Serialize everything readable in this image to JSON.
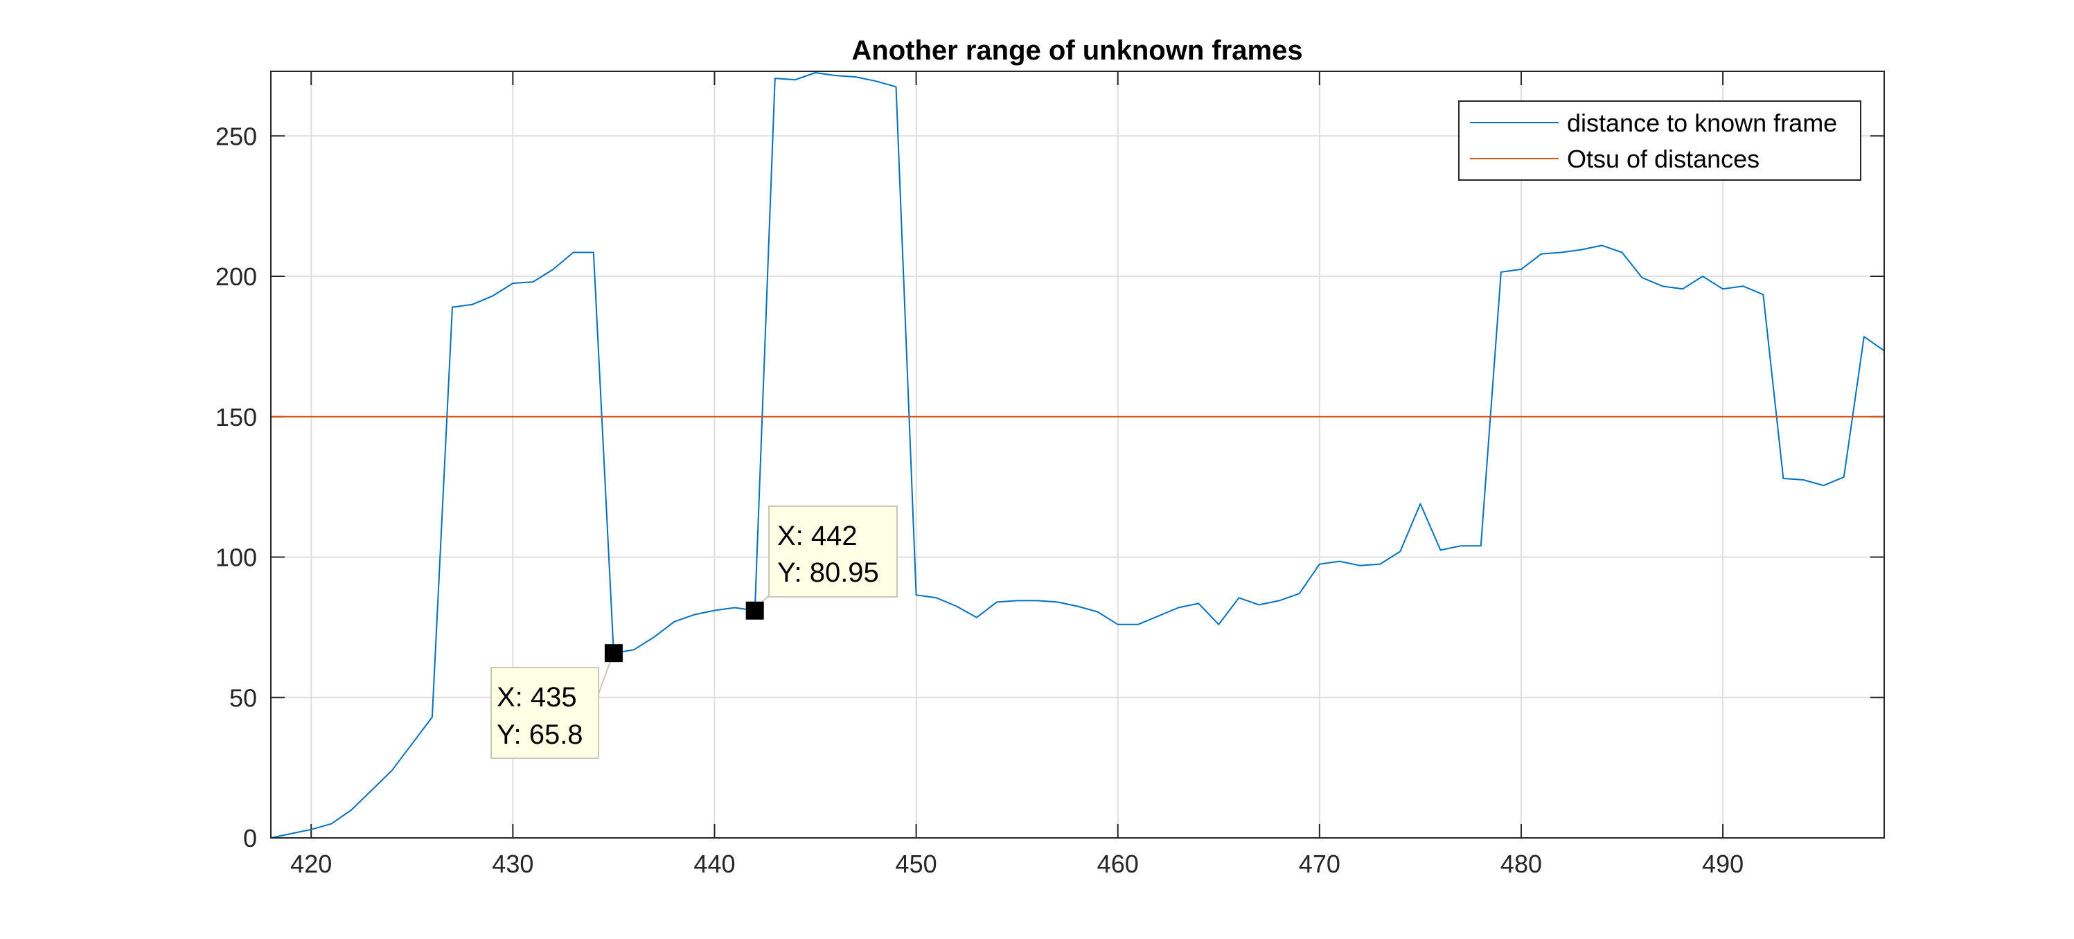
{
  "chart_data": {
    "type": "line",
    "title": "Another range of unknown frames",
    "xlabel": "",
    "ylabel": "",
    "xlim": [
      418,
      498
    ],
    "ylim": [
      0,
      273
    ],
    "x_ticks": [
      420,
      430,
      440,
      450,
      460,
      470,
      480,
      490
    ],
    "y_ticks": [
      0,
      50,
      100,
      150,
      200,
      250
    ],
    "grid": true,
    "legend_position": "top-right",
    "series": [
      {
        "name": "distance to known frame",
        "color": "#0072BD",
        "x": [
          418,
          419,
          420,
          421,
          422,
          423,
          424,
          425,
          426,
          427,
          428,
          429,
          430,
          431,
          432,
          433,
          434,
          435,
          436,
          437,
          438,
          439,
          440,
          441,
          442,
          443,
          444,
          445,
          446,
          447,
          448,
          449,
          450,
          451,
          452,
          453,
          454,
          455,
          456,
          457,
          458,
          459,
          460,
          461,
          462,
          463,
          464,
          465,
          466,
          467,
          468,
          469,
          470,
          471,
          472,
          473,
          474,
          475,
          476,
          477,
          478,
          479,
          480,
          481,
          482,
          483,
          484,
          485,
          486,
          487,
          488,
          489,
          490,
          491,
          492,
          493,
          494,
          495,
          496,
          497,
          498
        ],
        "y": [
          0,
          1.5,
          3,
          5,
          10,
          17,
          24,
          33.5,
          43,
          189,
          190,
          193,
          197.5,
          198,
          202.5,
          208.5,
          208.5,
          65.8,
          67,
          71.5,
          77,
          79.5,
          81,
          82,
          80.95,
          270.5,
          270,
          272.5,
          271.5,
          271,
          269.5,
          267.5,
          86.5,
          85.5,
          82.5,
          78.5,
          84,
          84.5,
          84.5,
          84,
          82.5,
          80.5,
          76,
          76,
          79,
          82,
          83.5,
          76,
          85.5,
          83,
          84.5,
          87,
          97.5,
          98.5,
          97,
          97.5,
          102,
          119,
          102.5,
          104,
          104,
          201.5,
          202.5,
          208,
          208.5,
          209.5,
          211,
          208.5,
          199.5,
          196.5,
          195.5,
          200,
          195.5,
          196.5,
          193.5,
          128,
          127.5,
          125.5,
          128.5,
          178.5,
          173.5
        ]
      },
      {
        "name": "Otsu of distances",
        "color": "#D95319",
        "x": [
          418,
          498
        ],
        "y": [
          150,
          150
        ]
      }
    ],
    "annotations": [
      {
        "x": 435,
        "y": 65.8,
        "line1": "X: 435",
        "line2": "Y: 65.8",
        "placement": "below-left"
      },
      {
        "x": 442,
        "y": 80.95,
        "line1": "X: 442",
        "line2": "Y: 80.95",
        "placement": "above-right"
      }
    ]
  }
}
